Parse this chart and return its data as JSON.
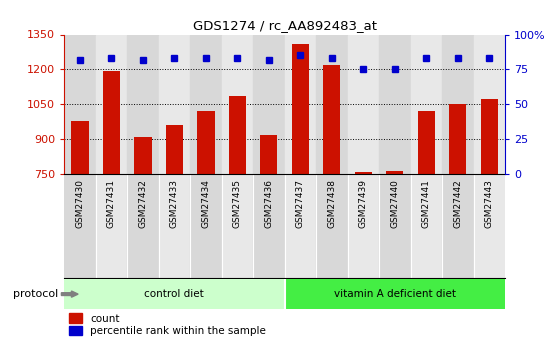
{
  "title": "GDS1274 / rc_AA892483_at",
  "samples": [
    "GSM27430",
    "GSM27431",
    "GSM27432",
    "GSM27433",
    "GSM27434",
    "GSM27435",
    "GSM27436",
    "GSM27437",
    "GSM27438",
    "GSM27439",
    "GSM27440",
    "GSM27441",
    "GSM27442",
    "GSM27443"
  ],
  "counts": [
    980,
    1192,
    910,
    960,
    1022,
    1085,
    920,
    1310,
    1220,
    760,
    762,
    1022,
    1050,
    1075
  ],
  "percentile_ranks": [
    82,
    83,
    82,
    83,
    83,
    83,
    82,
    85,
    83,
    75,
    75,
    83,
    83,
    83
  ],
  "bar_color": "#cc1100",
  "dot_color": "#0000cc",
  "ylim_left": [
    750,
    1350
  ],
  "ylim_right": [
    0,
    100
  ],
  "yticks_left": [
    750,
    900,
    1050,
    1200,
    1350
  ],
  "yticks_right": [
    0,
    25,
    50,
    75,
    100
  ],
  "yticklabels_right": [
    "0",
    "25",
    "50",
    "75",
    "100%"
  ],
  "grid_values": [
    900,
    1050,
    1200
  ],
  "n_control": 7,
  "n_vita": 7,
  "control_label": "control diet",
  "vitA_label": "vitamin A deficient diet",
  "protocol_label": "protocol",
  "legend_count_label": "count",
  "legend_pct_label": "percentile rank within the sample",
  "bar_width": 0.55,
  "control_bg_light": "#ccffcc",
  "vitA_bg_bright": "#44ee44",
  "col_bg": "#dddddd"
}
